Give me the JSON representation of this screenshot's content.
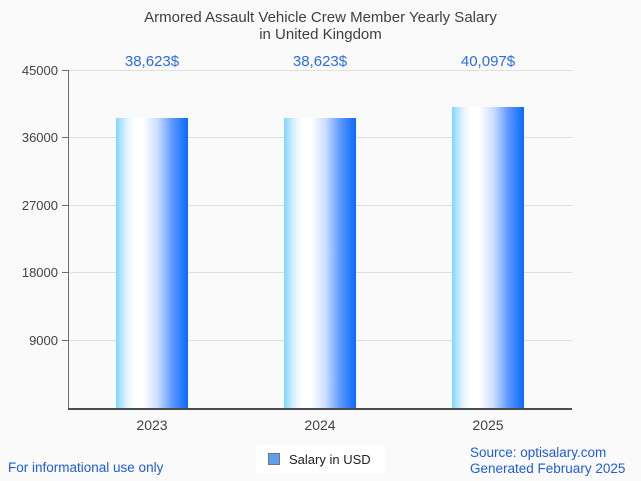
{
  "title": {
    "line1": "Armored Assault Vehicle Crew Member Yearly Salary",
    "line2": "in United Kingdom"
  },
  "legend": {
    "label": "Salary in USD"
  },
  "footer": {
    "left": "For informational use only",
    "source_line1": "Source: optisalary.com",
    "source_line2": "Generated February 2025"
  },
  "colors": {
    "background": "#fafafa",
    "title_text": "#3f3f3f",
    "axis_text": "#424242",
    "grid_line": "#e0e0e0",
    "axis_line": "#4d4d4d",
    "tick_line": "#6e6e6e",
    "value_label": "#2a6ce8",
    "footer_text": "#1d5ce0",
    "legend_swatch_fill": "#5b9ff0",
    "legend_swatch_border": "#757575",
    "bar_gradient": [
      "#7fd6ff",
      "#ffffff",
      "#0a6afe"
    ]
  },
  "chart_data": {
    "type": "bar",
    "title": "Armored Assault Vehicle Crew Member Yearly Salary in United Kingdom",
    "categories": [
      "2023",
      "2024",
      "2025"
    ],
    "series": [
      {
        "name": "Salary in USD",
        "values": [
          38623,
          38623,
          40097
        ]
      }
    ],
    "value_labels": [
      "38,623$",
      "38,623$",
      "40,097$"
    ],
    "xlabel": "",
    "ylabel": "",
    "ylim": [
      0,
      45000
    ],
    "yticks": [
      9000,
      18000,
      27000,
      36000,
      45000
    ],
    "grid": true,
    "legend_position": "bottom"
  }
}
